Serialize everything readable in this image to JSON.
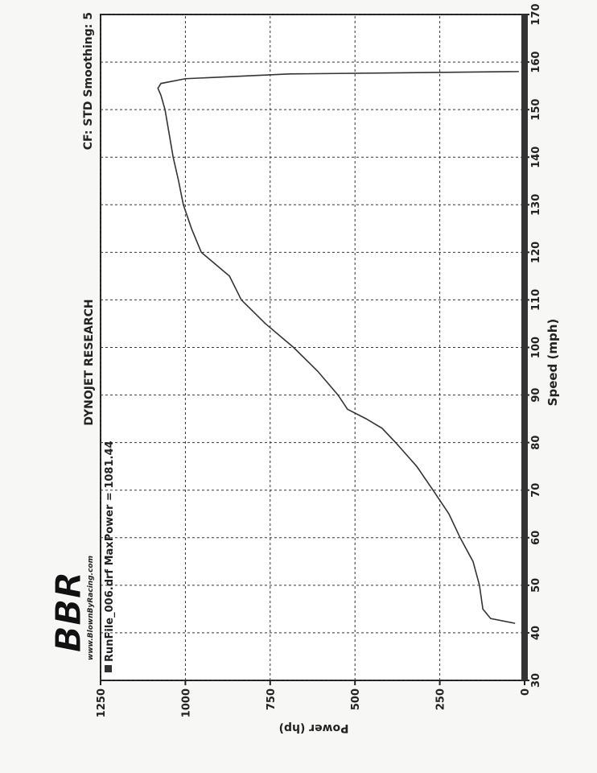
{
  "chart_data": {
    "type": "line",
    "title": "DYNOJET RESEARCH",
    "subtitle": "CF: STD  Smoothing: 5",
    "logo": {
      "text": "BBR",
      "url": "www.BlownByRacing.com"
    },
    "x_label": "Speed (mph)",
    "y_label": "Power (hp)",
    "x": [
      42,
      43,
      45,
      50,
      55,
      60,
      65,
      70,
      75,
      80,
      83,
      85,
      87,
      90,
      95,
      100,
      105,
      110,
      115,
      120,
      125,
      130,
      135,
      140,
      145,
      150,
      153,
      154.5,
      155.5,
      156.5,
      157.5,
      158
    ],
    "series": [
      {
        "name": "RunFile_006.drf MaxPower = 1081.44",
        "color": "#333333",
        "values": [
          28,
          100,
          123,
          133,
          152,
          190,
          223,
          270,
          318,
          380,
          420,
          467,
          522,
          550,
          610,
          681,
          764,
          835,
          870,
          953,
          982,
          1006,
          1020,
          1036,
          1048,
          1060,
          1072,
          1081,
          1072,
          1000,
          693,
          17
        ]
      }
    ],
    "xlim": [
      30,
      170
    ],
    "xticks": [
      30,
      40,
      50,
      60,
      70,
      80,
      90,
      100,
      110,
      120,
      130,
      140,
      150,
      160,
      170
    ],
    "ylim": [
      0,
      1250
    ],
    "yticks": [
      0,
      250,
      500,
      750,
      1000,
      1250
    ],
    "grid": true
  }
}
